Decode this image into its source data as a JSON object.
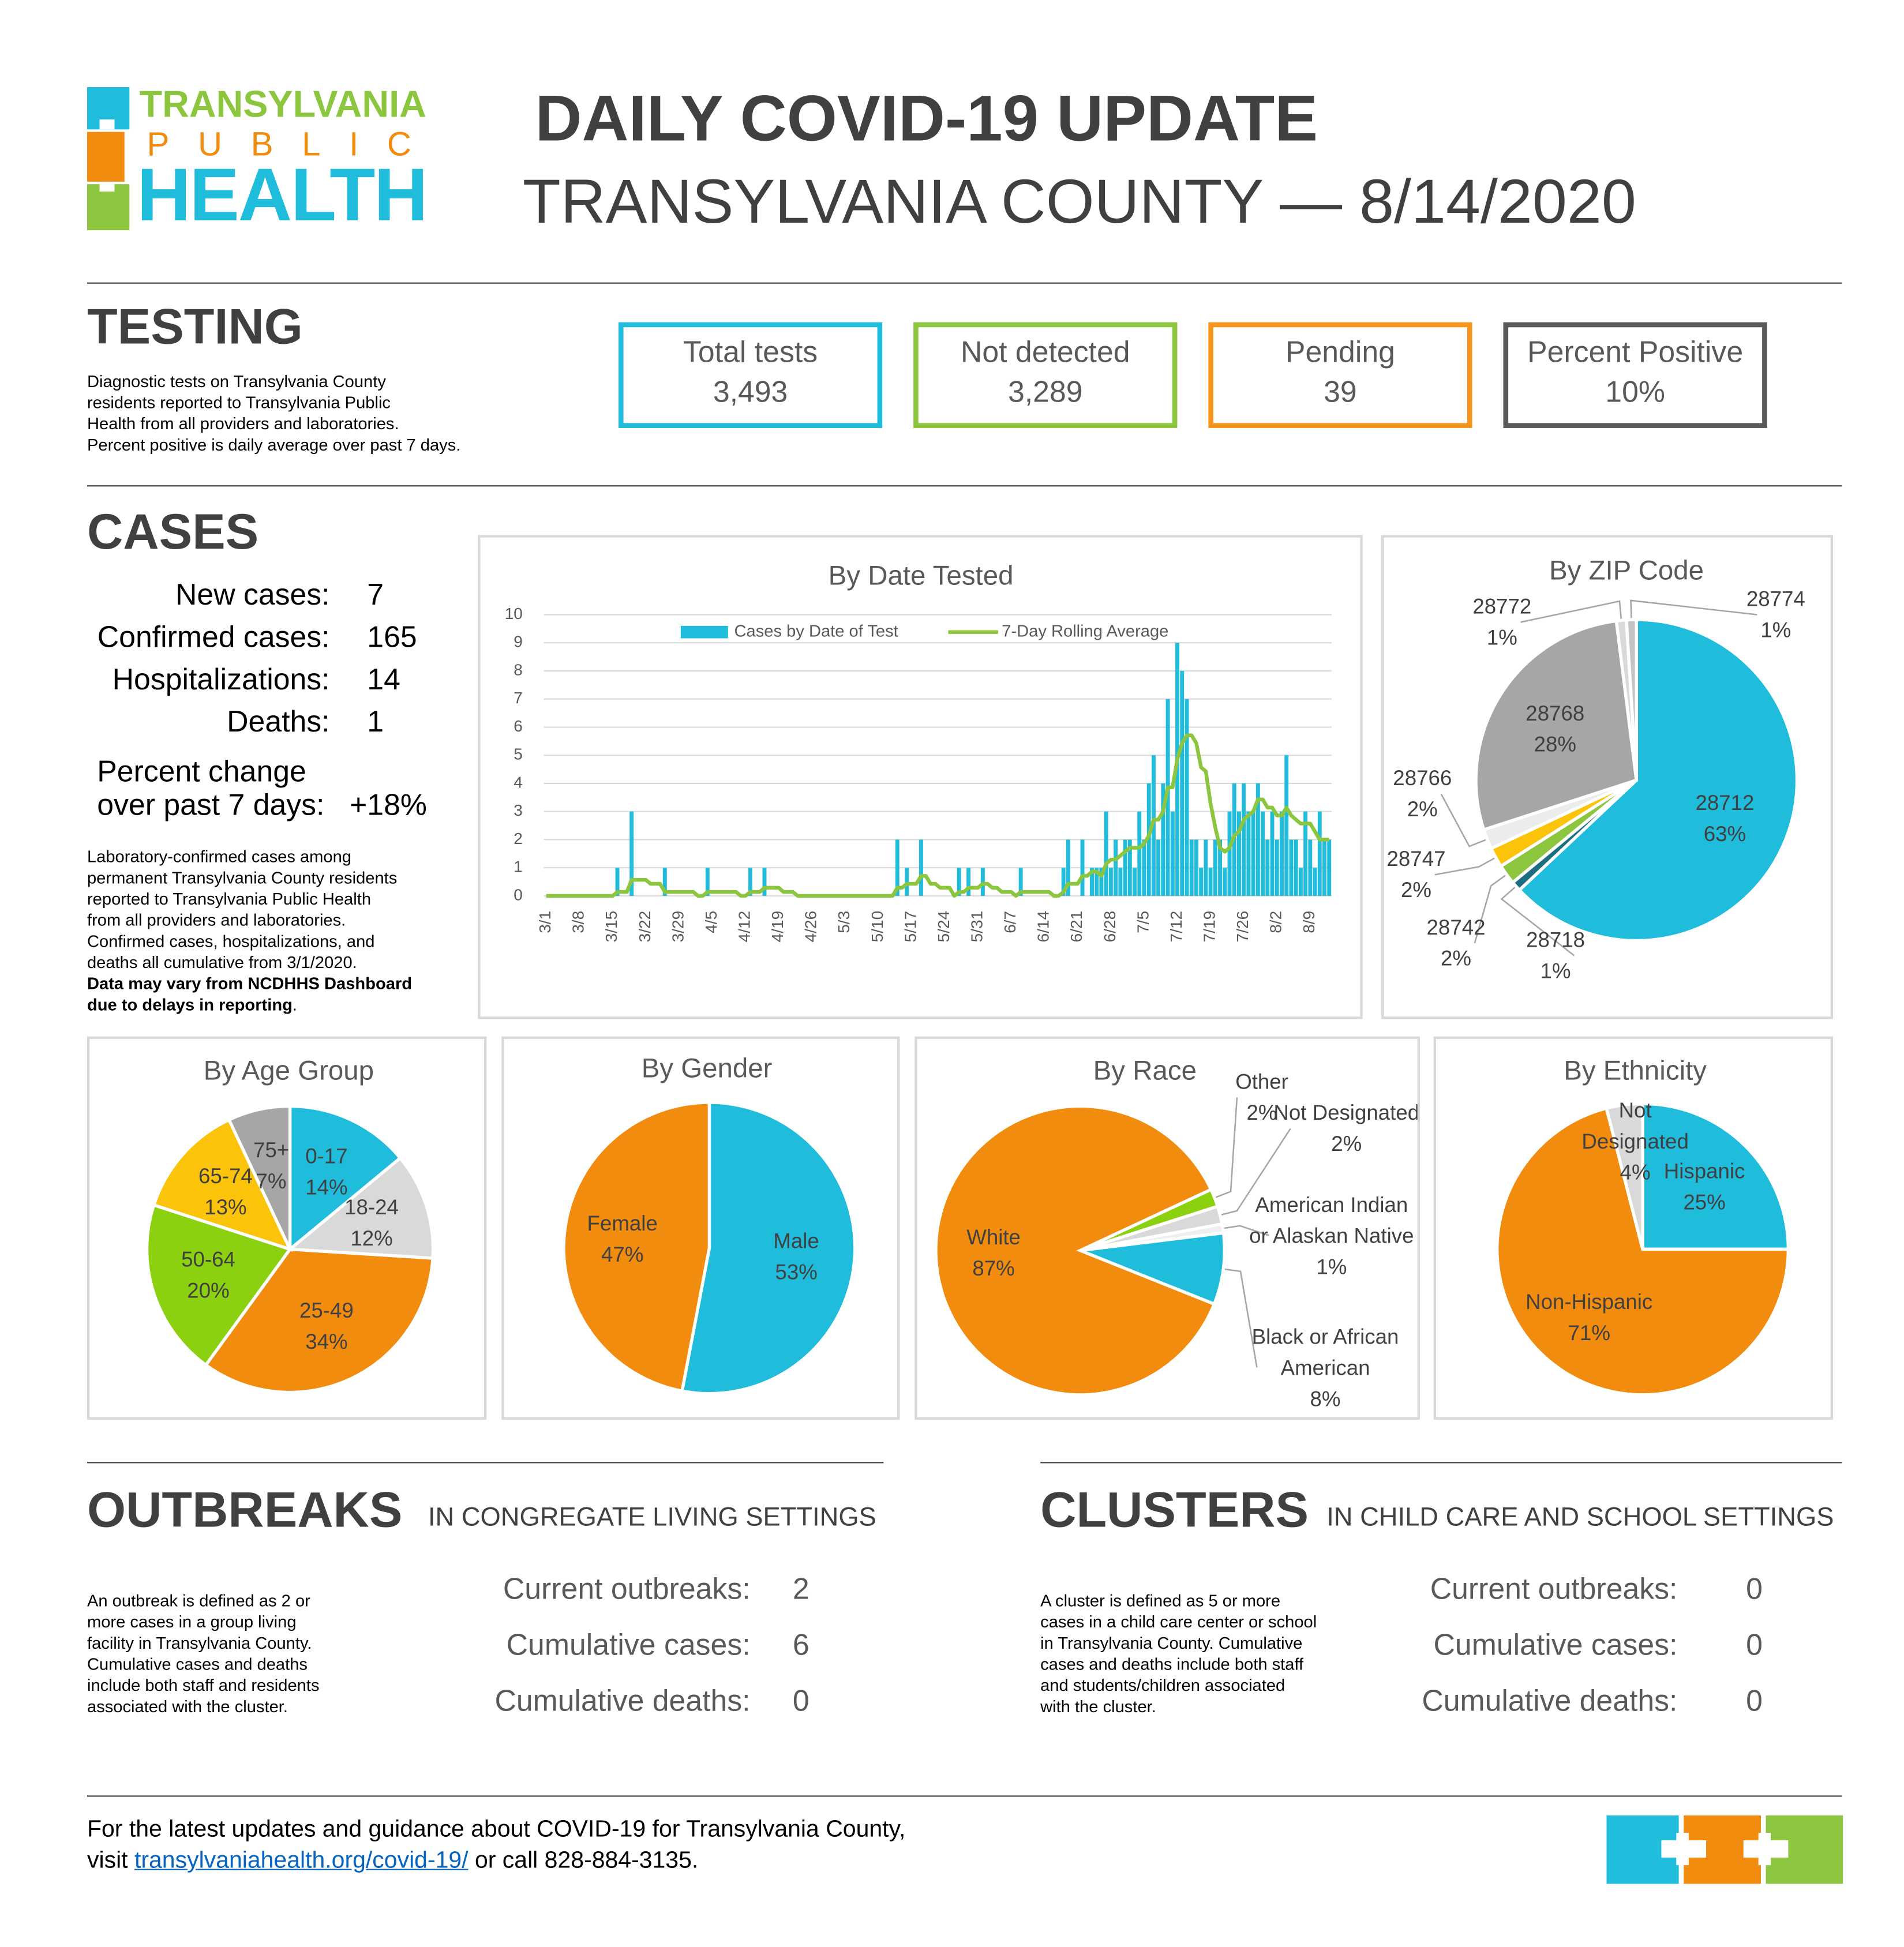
{
  "logo": {
    "line1": "TRANSYLVANIA",
    "line2": "PUBLIC",
    "line3": "HEALTH"
  },
  "header": {
    "title": "DAILY COVID-19 UPDATE",
    "subtitle": "TRANSYLVANIA COUNTY — 8/14/2020"
  },
  "testing": {
    "heading": "TESTING",
    "description": [
      "Diagnostic tests on Transylvania County",
      "residents reported to Transylvania Public",
      "Health from all providers and laboratories.",
      "Percent positive is daily average over past 7 days."
    ],
    "boxes": [
      {
        "label": "Total tests",
        "value": "3,493",
        "color": "#1fbcdc"
      },
      {
        "label": "Not detected",
        "value": "3,289",
        "color": "#8cc63f"
      },
      {
        "label": "Pending",
        "value": "39",
        "color": "#f7941d"
      },
      {
        "label": "Percent Positive",
        "value": "10%",
        "color": "#595959"
      }
    ]
  },
  "cases": {
    "heading": "CASES",
    "stats": [
      {
        "label": "New cases:",
        "value": "7"
      },
      {
        "label": "Confirmed cases:",
        "value": "165"
      },
      {
        "label": "Hospitalizations:",
        "value": "14"
      },
      {
        "label": "Deaths:",
        "value": "1"
      }
    ],
    "change": {
      "label_lines": [
        "Percent change",
        "over past 7 days:"
      ],
      "value": "+18%"
    },
    "description": [
      "Laboratory-confirmed cases among",
      "permanent Transylvania County residents",
      "reported to Transylvania Public Health",
      "from all providers and laboratories.",
      "Confirmed cases, hospitalizations, and",
      "deaths all cumulative from 3/1/2020."
    ],
    "note_lines": [
      "Data may vary from NCDHHS Dashboard",
      "due to delays in reporting"
    ],
    "note_end": "."
  },
  "outbreaks": {
    "heading": "OUTBREAKS",
    "subheading": "IN CONGREGATE LIVING SETTINGS",
    "description": [
      "An outbreak is defined as 2 or",
      "more cases in a group living",
      "facility in Transylvania County.",
      "Cumulative cases and deaths",
      "include both staff and residents",
      "associated with the cluster."
    ],
    "stats": [
      {
        "label": "Current outbreaks:",
        "value": "2"
      },
      {
        "label": "Cumulative cases:",
        "value": "6"
      },
      {
        "label": "Cumulative deaths:",
        "value": "0"
      }
    ]
  },
  "clusters": {
    "heading": "CLUSTERS",
    "subheading": "IN CHILD CARE AND SCHOOL SETTINGS",
    "description": [
      "A cluster is defined as 5 or more",
      "cases in a child care center or school",
      "in Transylvania County. Cumulative",
      "cases and deaths include both staff",
      "and students/children associated",
      "with the cluster."
    ],
    "stats": [
      {
        "label": "Current outbreaks:",
        "value": "0"
      },
      {
        "label": "Cumulative cases:",
        "value": "0"
      },
      {
        "label": "Cumulative deaths:",
        "value": "0"
      }
    ]
  },
  "footer": {
    "line1": "For the latest updates and guidance about COVID-19 for Transylvania County,",
    "before_link": "visit",
    "link": "transylvaniahealth.org/covid-19/",
    "after_link": "or call 828-884-3135."
  },
  "chart_data": [
    {
      "type": "bar",
      "title": "By Date Tested",
      "legend": "top",
      "grid": true,
      "ylim": [
        0,
        10
      ],
      "yticks": [
        0,
        1,
        2,
        3,
        4,
        5,
        6,
        7,
        8,
        9,
        10
      ],
      "categories": [
        "3/1",
        null,
        null,
        null,
        null,
        null,
        null,
        "3/8",
        null,
        null,
        null,
        null,
        null,
        null,
        "3/15",
        null,
        null,
        null,
        null,
        null,
        null,
        "3/22",
        null,
        null,
        null,
        null,
        null,
        null,
        "3/29",
        null,
        null,
        null,
        null,
        null,
        null,
        "4/5",
        null,
        null,
        null,
        null,
        null,
        null,
        "4/12",
        null,
        null,
        null,
        null,
        null,
        null,
        "4/19",
        null,
        null,
        null,
        null,
        null,
        null,
        "4/26",
        null,
        null,
        null,
        null,
        null,
        null,
        "5/3",
        null,
        null,
        null,
        null,
        null,
        null,
        "5/10",
        null,
        null,
        null,
        null,
        null,
        null,
        "5/17",
        null,
        null,
        null,
        null,
        null,
        null,
        "5/24",
        null,
        null,
        null,
        null,
        null,
        null,
        "5/31",
        null,
        null,
        null,
        null,
        null,
        null,
        "6/7",
        null,
        null,
        null,
        null,
        null,
        null,
        "6/14",
        null,
        null,
        null,
        null,
        null,
        null,
        "6/21",
        null,
        null,
        null,
        null,
        null,
        null,
        "6/28",
        null,
        null,
        null,
        null,
        null,
        null,
        "7/5",
        null,
        null,
        null,
        null,
        null,
        null,
        "7/12",
        null,
        null,
        null,
        null,
        null,
        null,
        "7/19",
        null,
        null,
        null,
        null,
        null,
        null,
        "7/26",
        null,
        null,
        null,
        null,
        null,
        null,
        "8/2",
        null,
        null,
        null,
        null,
        null,
        null,
        "8/9",
        null,
        null,
        null,
        null
      ],
      "series": [
        {
          "name": "Cases by Date of Test",
          "color": "#1fbcdc",
          "values": [
            0,
            0,
            0,
            0,
            0,
            0,
            0,
            0,
            0,
            0,
            0,
            0,
            0,
            0,
            0,
            1,
            0,
            0,
            3,
            0,
            0,
            0,
            0,
            0,
            0,
            1,
            0,
            0,
            0,
            0,
            0,
            0,
            0,
            0,
            1,
            0,
            0,
            0,
            0,
            0,
            0,
            0,
            0,
            1,
            0,
            0,
            1,
            0,
            0,
            0,
            0,
            0,
            0,
            0,
            0,
            0,
            0,
            0,
            0,
            0,
            0,
            0,
            0,
            0,
            0,
            0,
            0,
            0,
            0,
            0,
            0,
            0,
            0,
            0,
            2,
            0,
            1,
            0,
            0,
            2,
            0,
            0,
            0,
            0,
            0,
            0,
            0,
            1,
            0,
            1,
            0,
            0,
            1,
            0,
            0,
            0,
            0,
            0,
            0,
            0,
            1,
            0,
            0,
            0,
            0,
            0,
            0,
            0,
            0,
            1,
            2,
            0,
            0,
            2,
            0,
            1,
            1,
            1,
            3,
            1,
            2,
            1,
            2,
            2,
            1,
            3,
            2,
            4,
            5,
            2,
            4,
            7,
            3,
            9,
            8,
            7,
            2,
            2,
            1,
            2,
            1,
            2,
            2,
            1,
            3,
            4,
            3,
            4,
            3,
            3,
            4,
            3,
            2,
            3,
            2,
            3,
            5,
            2,
            2,
            1,
            3,
            2,
            1,
            3,
            2,
            2
          ]
        },
        {
          "name": "7-Day Rolling Average",
          "color": "#8cc63f",
          "type": "line",
          "values": [
            0,
            0,
            0,
            0,
            0,
            0,
            0,
            0,
            0,
            0,
            0,
            0,
            0,
            0,
            0,
            0.14,
            0.14,
            0.14,
            0.57,
            0.57,
            0.57,
            0.57,
            0.43,
            0.43,
            0.43,
            0.14,
            0.14,
            0.14,
            0.14,
            0.14,
            0.14,
            0.14,
            0,
            0,
            0.14,
            0.14,
            0.14,
            0.14,
            0.14,
            0.14,
            0.14,
            0,
            0,
            0.14,
            0.14,
            0.14,
            0.29,
            0.29,
            0.29,
            0.29,
            0.14,
            0.14,
            0.14,
            0,
            0,
            0,
            0,
            0,
            0,
            0,
            0,
            0,
            0,
            0,
            0,
            0,
            0,
            0,
            0,
            0,
            0,
            0,
            0,
            0,
            0.29,
            0.29,
            0.43,
            0.43,
            0.43,
            0.71,
            0.71,
            0.43,
            0.43,
            0.29,
            0.29,
            0.29,
            0,
            0.14,
            0.14,
            0.29,
            0.29,
            0.29,
            0.43,
            0.43,
            0.29,
            0.29,
            0.14,
            0.14,
            0.14,
            0,
            0.14,
            0.14,
            0.14,
            0.14,
            0.14,
            0.14,
            0.14,
            0,
            0,
            0.14,
            0.43,
            0.43,
            0.43,
            0.71,
            0.71,
            0.86,
            0.86,
            0.71,
            1.14,
            1.29,
            1.29,
            1.43,
            1.57,
            1.71,
            1.71,
            1.71,
            1.86,
            2.14,
            2.71,
            2.71,
            3,
            3.86,
            3.86,
            4.86,
            5.43,
            5.71,
            5.71,
            5.43,
            4.57,
            4.43,
            3.29,
            2.43,
            1.71,
            1.57,
            1.71,
            2.14,
            2.29,
            2.71,
            2.86,
            3,
            3.43,
            3.43,
            3.14,
            3.14,
            2.86,
            2.86,
            3.14,
            2.86,
            2.71,
            2.57,
            2.57,
            2.57,
            2.29,
            2,
            2,
            2
          ]
        }
      ]
    },
    {
      "type": "pie",
      "title": "By ZIP Code",
      "categories": [
        "28712",
        "28718",
        "28742",
        "28747",
        "28766",
        "28768",
        "28772",
        "28774"
      ],
      "values": [
        63,
        1,
        2,
        2,
        2,
        28,
        1,
        1
      ],
      "value_labels": [
        "63%",
        "1%",
        "2%",
        "2%",
        "2%",
        "28%",
        "1%",
        "1%"
      ],
      "colors": [
        "#1fbcdc",
        "#1d6f80",
        "#8cc63f",
        "#fcc30b",
        "#ececec",
        "#a6a6a6",
        "#d9d9d9",
        "#c4c4c4"
      ]
    },
    {
      "type": "pie",
      "title": "By Age Group",
      "categories": [
        "0-17",
        "18-24",
        "25-49",
        "50-64",
        "65-74",
        "75+"
      ],
      "values": [
        14,
        12,
        34,
        20,
        13,
        7
      ],
      "value_labels": [
        "14%",
        "12%",
        "34%",
        "20%",
        "13%",
        "7%"
      ],
      "colors": [
        "#1fbcdc",
        "#d9d9d9",
        "#f28c0f",
        "#8cd10f",
        "#fcc30b",
        "#a6a6a6"
      ]
    },
    {
      "type": "pie",
      "title": "By Gender",
      "categories": [
        "Male",
        "Female"
      ],
      "values": [
        53,
        47
      ],
      "value_labels": [
        "53%",
        "47%"
      ],
      "colors": [
        "#1fbcdc",
        "#f28c0f"
      ]
    },
    {
      "type": "pie",
      "title": "By Race",
      "categories": [
        "Other",
        "Not Designated",
        "American Indian or Alaskan Native",
        "Black or African American",
        "White"
      ],
      "values": [
        2,
        2,
        1,
        8,
        87
      ],
      "value_labels": [
        "2%",
        "2%",
        "1%",
        "8%",
        "87%"
      ],
      "colors": [
        "#8cd10f",
        "#d9d9d9",
        "#efefef",
        "#1fbcdc",
        "#f28c0f"
      ]
    },
    {
      "type": "pie",
      "title": "By Ethnicity",
      "categories": [
        "Hispanic",
        "Non-Hispanic",
        "Not Designated"
      ],
      "values": [
        25,
        71,
        4
      ],
      "value_labels": [
        "25%",
        "71%",
        "4%"
      ],
      "colors": [
        "#1fbcdc",
        "#f28c0f",
        "#d9d9d9"
      ]
    }
  ]
}
